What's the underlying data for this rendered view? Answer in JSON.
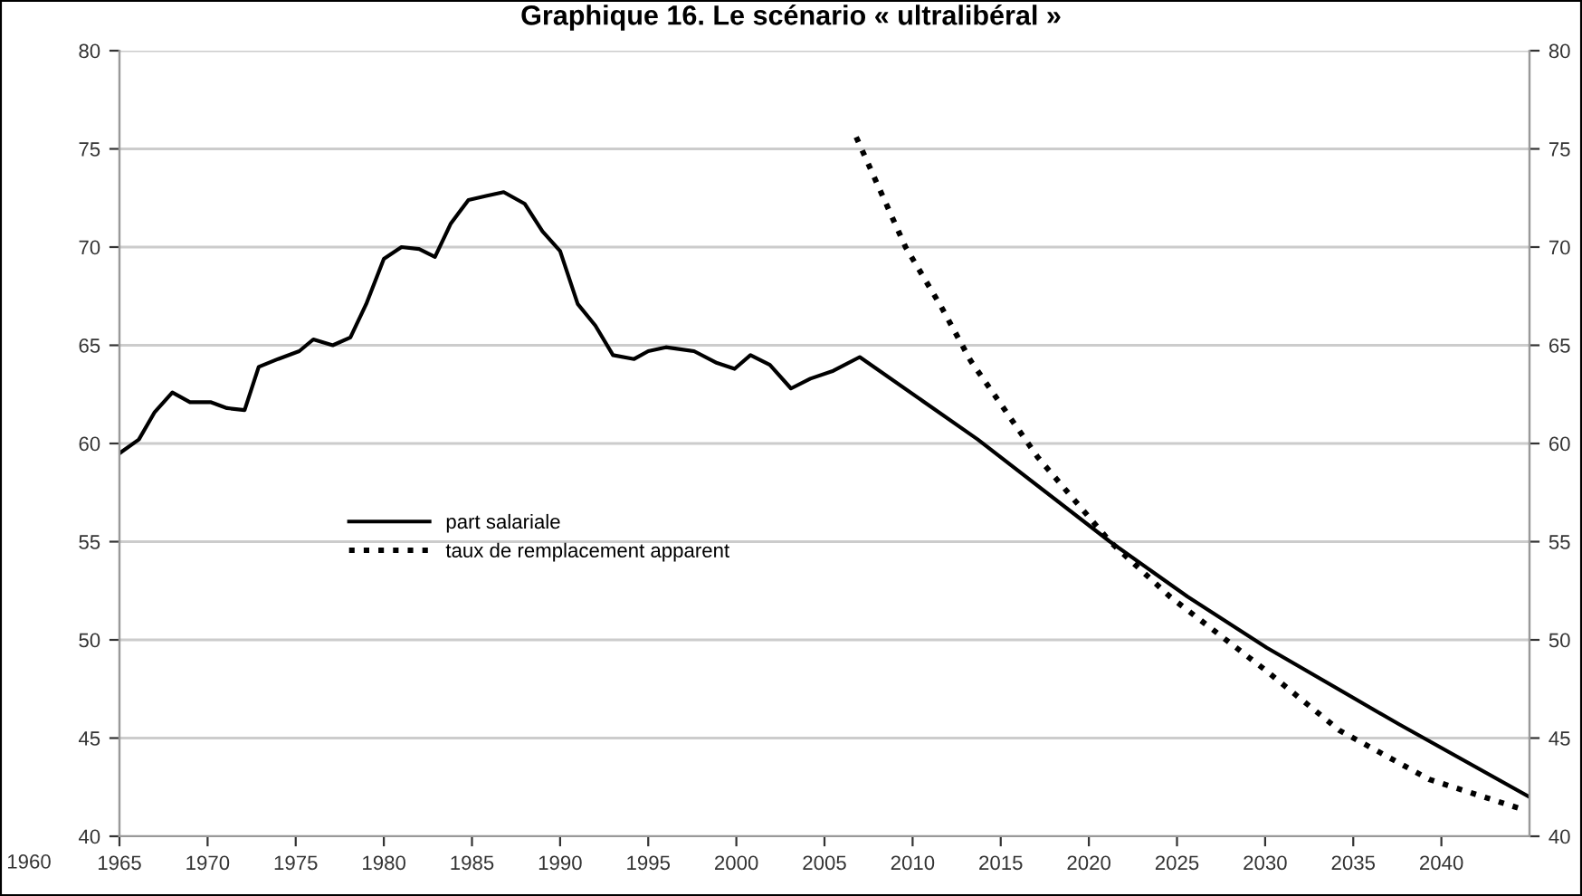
{
  "chart_data": {
    "type": "line",
    "title": "Graphique 16. Le scénario « ultralibéral »",
    "series": [
      {
        "name": "part salariale",
        "color": "#000000",
        "line_style": "solid",
        "x": [
          1965.0,
          1966.1,
          1967.0,
          1968.0,
          1969.0,
          1970.2,
          1971.1,
          1972.1,
          1972.9,
          1974.0,
          1975.2,
          1976.0,
          1977.1,
          1978.1,
          1979.0,
          1980.0,
          1981.0,
          1982.0,
          1982.9,
          1983.8,
          1984.8,
          1985.8,
          1986.8,
          1988.0,
          1989.0,
          1990.0,
          1991.0,
          1992.0,
          1993.0,
          1994.2,
          1995.0,
          1996.0,
          1997.6,
          1998.9,
          1999.9,
          2000.8,
          2001.9,
          2003.1,
          2004.2,
          2005.5,
          2007.0,
          2013.7,
          2021.2,
          2025.6,
          2030.1,
          2037.6,
          2045.0
        ],
        "values": [
          59.5,
          60.2,
          61.6,
          62.6,
          62.1,
          62.1,
          61.8,
          61.7,
          63.9,
          64.3,
          64.7,
          65.3,
          65.0,
          65.4,
          67.1,
          69.4,
          70.0,
          69.9,
          69.5,
          71.2,
          72.4,
          72.6,
          72.8,
          72.2,
          70.8,
          69.8,
          67.1,
          66.0,
          64.5,
          64.3,
          64.7,
          64.9,
          64.7,
          64.1,
          63.8,
          64.5,
          64.0,
          62.8,
          63.3,
          63.7,
          64.4,
          60.2,
          55.0,
          52.2,
          49.6,
          45.7,
          42.0
        ]
      },
      {
        "name": "taux de remplacement apparent",
        "color": "#000000",
        "line_style": "dotted",
        "x": [
          2006.8,
          2009.6,
          2011.6,
          2013.3,
          2017.1,
          2021.2,
          2024.6,
          2030.1,
          2034.2,
          2039.3,
          2044.5
        ],
        "values": [
          75.6,
          70.0,
          67.0,
          64.2,
          59.3,
          55.0,
          52.2,
          48.4,
          45.4,
          42.9,
          41.4
        ]
      }
    ],
    "xlim": [
      1965,
      2045
    ],
    "annotations": [
      "1960"
    ],
    "xticks": [
      1965,
      1970,
      1975,
      1980,
      1985,
      1990,
      1995,
      2000,
      2005,
      2010,
      2015,
      2020,
      2025,
      2030,
      2035,
      2040
    ],
    "ylim": [
      40,
      80
    ],
    "yticks": [
      40,
      45,
      50,
      55,
      60,
      65,
      70,
      75,
      80
    ],
    "y2lim": [
      40,
      80
    ],
    "y2ticks": [
      40,
      45,
      50,
      55,
      60,
      65,
      70,
      75,
      80
    ],
    "grid": "y",
    "legend": "center left",
    "marker": "none"
  }
}
